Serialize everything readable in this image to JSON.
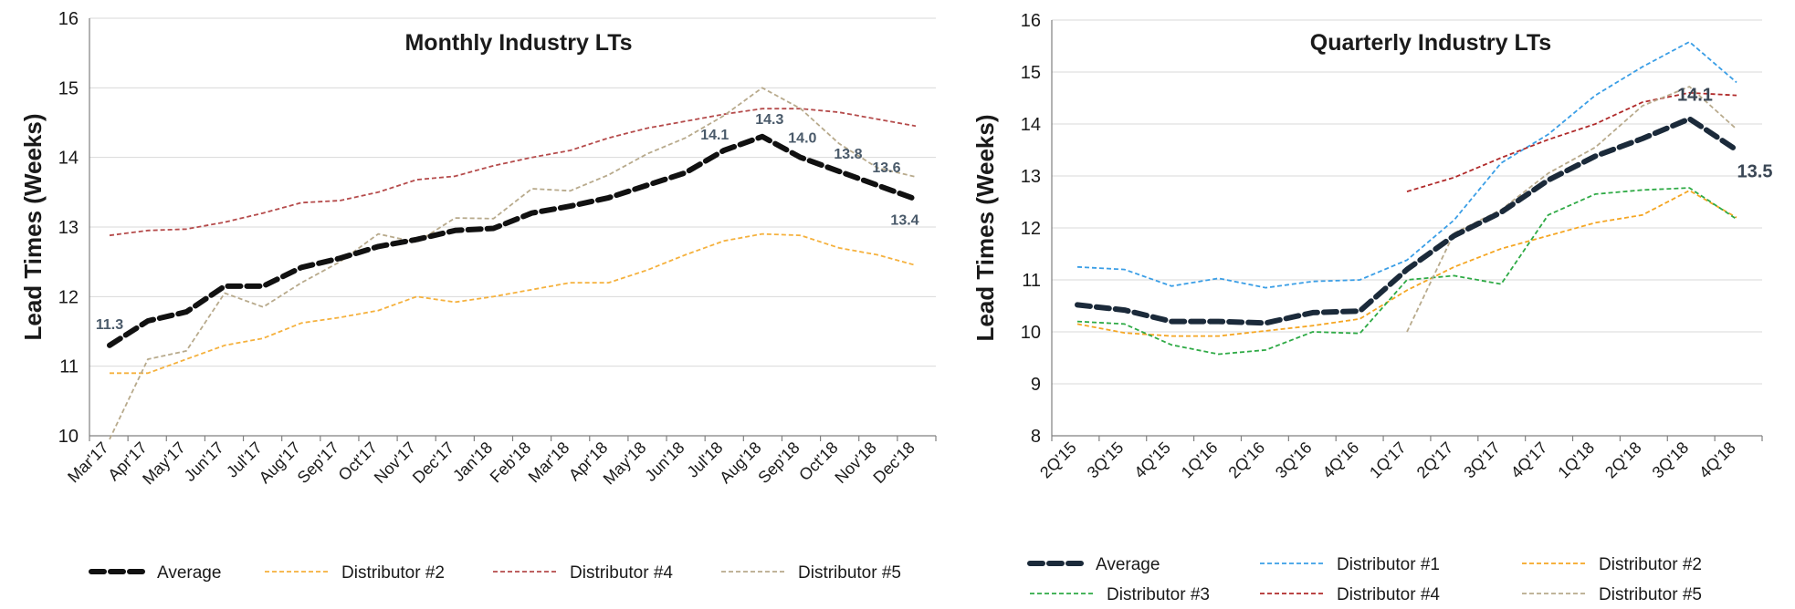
{
  "chart_data": [
    {
      "type": "line",
      "title": "Monthly Industry LTs",
      "ylabel": "Lead Times (Weeks)",
      "ylim": [
        10,
        16
      ],
      "yticks": [
        10,
        11,
        12,
        13,
        14,
        15,
        16
      ],
      "grid": true,
      "legend_position": "bottom",
      "categories": [
        "Mar'17",
        "Apr'17",
        "May'17",
        "Jun'17",
        "Jul'17",
        "Aug'17",
        "Sep'17",
        "Oct'17",
        "Nov'17",
        "Dec'17",
        "Jan'18",
        "Feb'18",
        "Mar'18",
        "Apr'18",
        "May'18",
        "Jun'18",
        "Jul'18",
        "Aug'18",
        "Sep'18",
        "Oct'18",
        "Nov'18",
        "Dec'18"
      ],
      "series": [
        {
          "name": "Average",
          "color": "#111111",
          "style": "thick-dash",
          "values": [
            11.3,
            11.65,
            11.78,
            12.15,
            12.15,
            12.42,
            12.55,
            12.72,
            12.82,
            12.95,
            12.98,
            13.2,
            13.3,
            13.42,
            13.6,
            13.78,
            14.1,
            14.3,
            14.0,
            13.8,
            13.6,
            13.4
          ],
          "labels": [
            {
              "index": 0,
              "text": "11.3"
            },
            {
              "index": 16,
              "text": "14.1"
            },
            {
              "index": 17,
              "text": "14.3"
            },
            {
              "index": 18,
              "text": "14.0"
            },
            {
              "index": 19,
              "text": "13.8"
            },
            {
              "index": 20,
              "text": "13.6"
            },
            {
              "index": 21,
              "text": "13.4"
            }
          ]
        },
        {
          "name": "Distributor #2",
          "color": "#f5b13d",
          "style": "dash",
          "values": [
            10.9,
            10.9,
            11.1,
            11.3,
            11.4,
            11.62,
            11.7,
            11.8,
            12.0,
            11.92,
            12.0,
            12.1,
            12.2,
            12.2,
            12.38,
            12.6,
            12.8,
            12.9,
            12.88,
            12.7,
            12.6,
            12.45
          ]
        },
        {
          "name": "Distributor #4",
          "color": "#b54b4b",
          "style": "dash",
          "values": [
            12.88,
            12.95,
            12.97,
            13.07,
            13.2,
            13.35,
            13.38,
            13.5,
            13.68,
            13.73,
            13.88,
            14.0,
            14.1,
            14.28,
            14.42,
            14.52,
            14.62,
            14.7,
            14.7,
            14.65,
            14.55,
            14.45
          ]
        },
        {
          "name": "Distributor #5",
          "color": "#b8aa8c",
          "style": "dash",
          "values": [
            9.95,
            11.1,
            11.22,
            12.05,
            11.85,
            12.2,
            12.5,
            12.9,
            12.78,
            13.13,
            13.12,
            13.55,
            13.52,
            13.75,
            14.05,
            14.28,
            14.6,
            15.0,
            14.7,
            14.2,
            13.85,
            13.72
          ]
        }
      ]
    },
    {
      "type": "line",
      "title": "Quarterly Industry LTs",
      "ylabel": "Lead Times (Weeks)",
      "ylim": [
        8,
        16
      ],
      "yticks": [
        8,
        9,
        10,
        11,
        12,
        13,
        14,
        15,
        16
      ],
      "grid": true,
      "legend_position": "bottom",
      "categories": [
        "2Q'15",
        "3Q'15",
        "4Q'15",
        "1Q'16",
        "2Q'16",
        "3Q'16",
        "4Q'16",
        "1Q'17",
        "2Q'17",
        "3Q'17",
        "4Q'17",
        "1Q'18",
        "2Q'18",
        "3Q'18",
        "4Q'18"
      ],
      "series": [
        {
          "name": "Average",
          "color": "#1b2a3a",
          "style": "thick-dash",
          "values": [
            10.52,
            10.42,
            10.2,
            10.2,
            10.17,
            10.37,
            10.4,
            11.2,
            11.85,
            12.3,
            12.92,
            13.38,
            13.72,
            14.1,
            13.5
          ],
          "labels": [
            {
              "index": 13,
              "text": "14.1"
            },
            {
              "index": 14,
              "text": "13.5"
            }
          ]
        },
        {
          "name": "Distributor #1",
          "color": "#3a9ee6",
          "style": "dash",
          "values": [
            11.25,
            11.2,
            10.88,
            11.03,
            10.85,
            10.97,
            11.0,
            11.38,
            12.15,
            13.25,
            13.8,
            14.55,
            15.1,
            15.58,
            14.8
          ]
        },
        {
          "name": "Distributor #2",
          "color": "#f5a623",
          "style": "dash",
          "values": [
            10.15,
            9.98,
            9.92,
            9.92,
            10.02,
            10.12,
            10.25,
            10.8,
            11.25,
            11.6,
            11.85,
            12.1,
            12.25,
            12.72,
            12.2
          ]
        },
        {
          "name": "Distributor #3",
          "color": "#2eaa45",
          "style": "dash",
          "values": [
            10.2,
            10.15,
            9.75,
            9.57,
            9.65,
            10.0,
            9.97,
            11.0,
            11.08,
            10.92,
            12.25,
            12.65,
            12.73,
            12.77,
            12.17
          ]
        },
        {
          "name": "Distributor #4",
          "color": "#b02a2a",
          "style": "dash",
          "values": [
            null,
            null,
            null,
            null,
            null,
            null,
            null,
            12.7,
            12.97,
            13.35,
            13.7,
            14.0,
            14.42,
            14.6,
            14.55
          ]
        },
        {
          "name": "Distributor #5",
          "color": "#b8aa8c",
          "style": "dash",
          "values": [
            null,
            null,
            null,
            null,
            null,
            null,
            null,
            10.0,
            11.9,
            12.35,
            13.05,
            13.55,
            14.35,
            14.72,
            13.9
          ]
        }
      ]
    }
  ]
}
